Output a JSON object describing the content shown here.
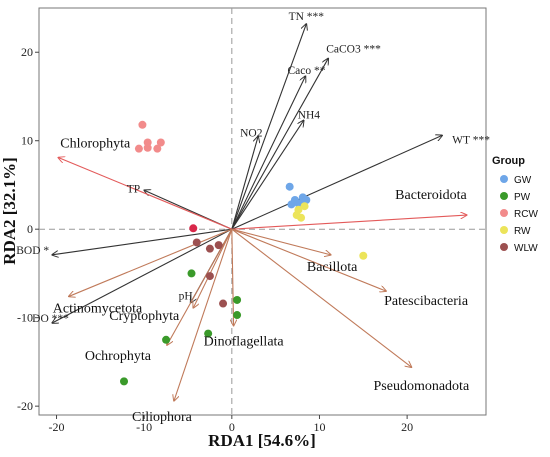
{
  "chart_data": {
    "type": "scatter",
    "subtype": "RDA biplot",
    "xlabel": "RDA1 [54.6%]",
    "ylabel": "RDA2 [32.1%]",
    "xlim": [
      -22,
      29
    ],
    "ylim": [
      -21,
      25
    ],
    "xticks": [
      -20,
      -10,
      0,
      10,
      20
    ],
    "yticks": [
      -20,
      -10,
      0,
      10,
      20
    ],
    "reference_lines": "dashed gray at x=0 and y=0",
    "legend_title": "Group",
    "legend_position": "right",
    "groups": [
      {
        "name": "GW",
        "color": "#6ea6e8",
        "points": [
          [
            6.6,
            4.8
          ],
          [
            6.8,
            2.8
          ],
          [
            7.2,
            3.3
          ],
          [
            7.6,
            2.9
          ],
          [
            8.0,
            3.0
          ],
          [
            8.1,
            3.6
          ],
          [
            8.5,
            3.3
          ]
        ]
      },
      {
        "name": "PW",
        "color": "#3a9a2a",
        "points": [
          [
            -4.6,
            -5.0
          ],
          [
            -7.5,
            -12.5
          ],
          [
            -2.7,
            -11.8
          ],
          [
            0.6,
            -8.0
          ],
          [
            0.6,
            -9.7
          ],
          [
            -12.3,
            -17.2
          ]
        ]
      },
      {
        "name": "RCW",
        "color": "#f28b8b",
        "points": [
          [
            -10.2,
            11.8
          ],
          [
            -10.6,
            9.1
          ],
          [
            -9.6,
            9.2
          ],
          [
            -9.6,
            9.8
          ],
          [
            -8.5,
            9.1
          ],
          [
            -8.1,
            9.8
          ]
        ]
      },
      {
        "name": "RW",
        "color": "#ece45a",
        "points": [
          [
            7.4,
            1.6
          ],
          [
            7.6,
            2.2
          ],
          [
            7.9,
            1.3
          ],
          [
            8.3,
            2.6
          ],
          [
            15.0,
            -3.0
          ]
        ]
      },
      {
        "name": "WLW",
        "color": "#9c5050",
        "points": [
          [
            -4.0,
            -1.5
          ],
          [
            -2.5,
            -2.2
          ],
          [
            -1.5,
            -1.8
          ],
          [
            -2.5,
            -5.3
          ],
          [
            -1.0,
            -8.4
          ]
        ]
      }
    ],
    "extra_points": [
      {
        "color": "#d9284a",
        "point": [
          -4.4,
          0.1
        ]
      }
    ],
    "env_vectors": [
      {
        "label": "TN ***",
        "end": [
          8.5,
          23.2
        ]
      },
      {
        "label": "CaCO3 ***",
        "end": [
          11.0,
          19.3
        ]
      },
      {
        "label": "Caco **",
        "end": [
          8.4,
          17.3
        ]
      },
      {
        "label": "NH4",
        "end": [
          8.2,
          12.3
        ]
      },
      {
        "label": "NO2",
        "end": [
          3.0,
          10.5
        ]
      },
      {
        "label": "WT ***",
        "end": [
          24.0,
          10.6
        ]
      },
      {
        "label": "TP",
        "end": [
          -10.0,
          4.4
        ]
      },
      {
        "label": "BOD *",
        "end": [
          -20.5,
          -2.9
        ]
      },
      {
        "label": "DO ***",
        "end": [
          -20.5,
          -10.6
        ]
      },
      {
        "label": "pH",
        "end": [
          -4.7,
          -8.3
        ]
      }
    ],
    "taxa_vectors": [
      {
        "label": "Chlorophyta",
        "end": [
          -19.8,
          8.1
        ],
        "color": "#e35a5a"
      },
      {
        "label": "Bacteroidota",
        "end": [
          26.8,
          1.6
        ],
        "color": "#e35a5a"
      },
      {
        "label": "Bacillota",
        "end": [
          11.3,
          -2.9
        ],
        "color": "#c07a5a"
      },
      {
        "label": "Patescibacteria",
        "end": [
          17.6,
          -7.0
        ],
        "color": "#c07a5a"
      },
      {
        "label": "Pseudomonadota",
        "end": [
          20.5,
          -15.6
        ],
        "color": "#c07a5a"
      },
      {
        "label": "Actinomycetota",
        "end": [
          -18.6,
          -7.6
        ],
        "color": "#c07a5a"
      },
      {
        "label": "Cryptophyta",
        "end": [
          -4.4,
          -8.9
        ],
        "color": "#c07a5a"
      },
      {
        "label": "Dinoflagellata",
        "end": [
          0.2,
          -10.9
        ],
        "color": "#c07a5a"
      },
      {
        "label": "Ochrophyta",
        "end": [
          -7.4,
          -13.1
        ],
        "color": "#c07a5a"
      },
      {
        "label": "Ciliophora",
        "end": [
          -6.6,
          -19.4
        ],
        "color": "#c07a5a"
      }
    ]
  }
}
